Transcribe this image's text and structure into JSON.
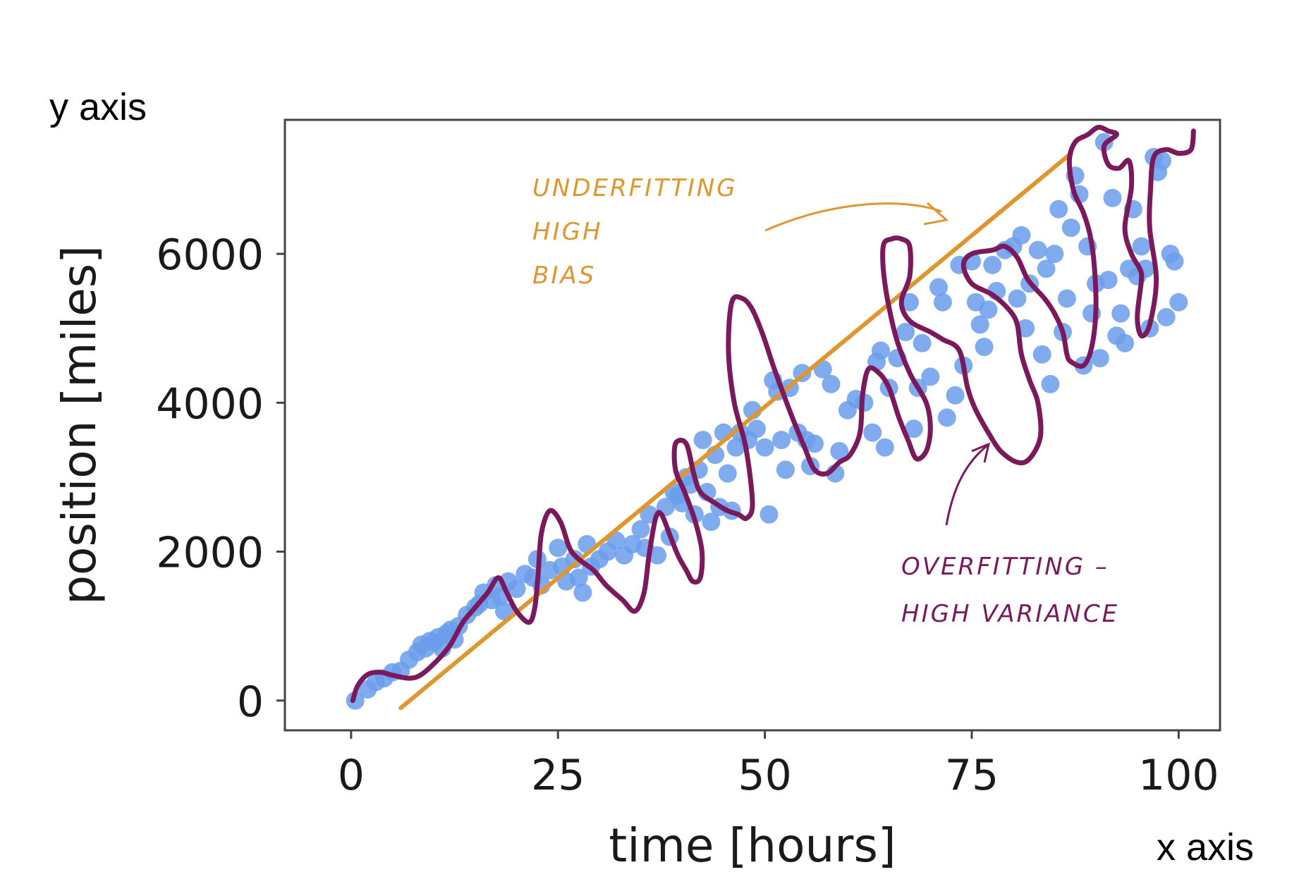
{
  "chart_data": {
    "type": "scatter",
    "title": "",
    "xlabel": "time [hours]",
    "ylabel": "position [miles]",
    "xlim": [
      -8,
      105
    ],
    "ylim": [
      -400,
      7800
    ],
    "x_ticks": [
      0,
      25,
      50,
      75,
      100
    ],
    "y_ticks": [
      0,
      2000,
      4000,
      6000
    ],
    "grid": false,
    "corner_labels": {
      "y": "y axis",
      "x": "x axis"
    },
    "colors": {
      "points": "#6b9cec",
      "underfit": "#e0962e",
      "overfit": "#7a1a5c",
      "frame": "#444444"
    },
    "points": [
      [
        0.5,
        0
      ],
      [
        2,
        150
      ],
      [
        3,
        250
      ],
      [
        4,
        300
      ],
      [
        5,
        380
      ],
      [
        6,
        400
      ],
      [
        7,
        550
      ],
      [
        8,
        650
      ],
      [
        8.5,
        750
      ],
      [
        9,
        700
      ],
      [
        9.5,
        800
      ],
      [
        10,
        780
      ],
      [
        10.5,
        850
      ],
      [
        11,
        700
      ],
      [
        11.5,
        900
      ],
      [
        12,
        950
      ],
      [
        12.5,
        820
      ],
      [
        13,
        1000
      ],
      [
        14,
        1150
      ],
      [
        15,
        1250
      ],
      [
        15.5,
        1300
      ],
      [
        16,
        1450
      ],
      [
        17,
        1350
      ],
      [
        17.5,
        1550
      ],
      [
        18,
        1400
      ],
      [
        18.5,
        1200
      ],
      [
        19,
        1600
      ],
      [
        20,
        1500
      ],
      [
        21,
        1700
      ],
      [
        22,
        1650
      ],
      [
        22.5,
        1900
      ],
      [
        23,
        1550
      ],
      [
        24,
        1750
      ],
      [
        25,
        2050
      ],
      [
        25.5,
        1800
      ],
      [
        26,
        1600
      ],
      [
        27,
        1900
      ],
      [
        27.5,
        1650
      ],
      [
        28,
        1450
      ],
      [
        28.5,
        2100
      ],
      [
        29,
        1800
      ],
      [
        30,
        1900
      ],
      [
        31,
        2000
      ],
      [
        32,
        2150
      ],
      [
        33,
        1950
      ],
      [
        34,
        2100
      ],
      [
        35,
        2300
      ],
      [
        35.5,
        2050
      ],
      [
        36,
        2500
      ],
      [
        37,
        1950
      ],
      [
        38,
        2600
      ],
      [
        38.5,
        2200
      ],
      [
        39,
        2800
      ],
      [
        39.5,
        2750
      ],
      [
        40,
        2650
      ],
      [
        40.5,
        3000
      ],
      [
        41,
        2900
      ],
      [
        41.5,
        2500
      ],
      [
        42,
        3100
      ],
      [
        42.5,
        3500
      ],
      [
        43,
        2800
      ],
      [
        43.5,
        2400
      ],
      [
        44,
        3300
      ],
      [
        44.5,
        2600
      ],
      [
        45,
        3600
      ],
      [
        45.5,
        3050
      ],
      [
        46,
        2550
      ],
      [
        46.5,
        3400
      ],
      [
        47,
        3600
      ],
      [
        48,
        3500
      ],
      [
        48.5,
        3900
      ],
      [
        49,
        3650
      ],
      [
        50,
        3400
      ],
      [
        50.5,
        2500
      ],
      [
        51,
        4300
      ],
      [
        51.5,
        4150
      ],
      [
        52,
        3500
      ],
      [
        52.5,
        3100
      ],
      [
        53,
        4200
      ],
      [
        54,
        3600
      ],
      [
        54.5,
        4400
      ],
      [
        55,
        3500
      ],
      [
        55.5,
        3150
      ],
      [
        56,
        3450
      ],
      [
        57,
        4450
      ],
      [
        58,
        4250
      ],
      [
        58.5,
        3050
      ],
      [
        59,
        3350
      ],
      [
        60,
        3900
      ],
      [
        61,
        4050
      ],
      [
        62,
        4000
      ],
      [
        63,
        3600
      ],
      [
        63.5,
        4550
      ],
      [
        64,
        4700
      ],
      [
        64.5,
        3400
      ],
      [
        65,
        4200
      ],
      [
        66,
        4600
      ],
      [
        67,
        4950
      ],
      [
        67.5,
        5350
      ],
      [
        68,
        3650
      ],
      [
        68.5,
        4200
      ],
      [
        69,
        4800
      ],
      [
        70,
        4350
      ],
      [
        71,
        5550
      ],
      [
        71.5,
        5350
      ],
      [
        72,
        3800
      ],
      [
        73,
        4100
      ],
      [
        73.5,
        5850
      ],
      [
        74,
        4500
      ],
      [
        75,
        5900
      ],
      [
        75.5,
        5350
      ],
      [
        76,
        5050
      ],
      [
        76.5,
        4750
      ],
      [
        77,
        5250
      ],
      [
        77.5,
        5850
      ],
      [
        78,
        5500
      ],
      [
        79,
        6050
      ],
      [
        80,
        6100
      ],
      [
        80.5,
        5400
      ],
      [
        81,
        6250
      ],
      [
        81.5,
        5000
      ],
      [
        82,
        5600
      ],
      [
        83,
        6050
      ],
      [
        83.5,
        4650
      ],
      [
        84,
        5800
      ],
      [
        84.5,
        4250
      ],
      [
        85,
        6000
      ],
      [
        85.5,
        6600
      ],
      [
        86,
        4950
      ],
      [
        86.5,
        5400
      ],
      [
        87,
        6350
      ],
      [
        87.5,
        7050
      ],
      [
        88,
        6800
      ],
      [
        88.5,
        4500
      ],
      [
        89,
        6100
      ],
      [
        89.5,
        5200
      ],
      [
        90,
        5600
      ],
      [
        90.5,
        4600
      ],
      [
        91,
        7500
      ],
      [
        91.5,
        5650
      ],
      [
        92,
        6750
      ],
      [
        92.5,
        4900
      ],
      [
        93,
        5200
      ],
      [
        93.5,
        4800
      ],
      [
        94,
        5800
      ],
      [
        94.5,
        6600
      ],
      [
        95,
        5700
      ],
      [
        95.5,
        6100
      ],
      [
        96,
        5800
      ],
      [
        96.5,
        5000
      ],
      [
        97,
        7300
      ],
      [
        97.5,
        7100
      ],
      [
        98,
        7250
      ],
      [
        98.5,
        5150
      ],
      [
        99,
        6000
      ],
      [
        99.5,
        5900
      ],
      [
        100,
        5350
      ]
    ],
    "underfit_line": {
      "x": [
        6,
        87
      ],
      "y": [
        -100,
        7350
      ]
    },
    "overfit_curve": [
      [
        0.2,
        0
      ],
      [
        0.8,
        200
      ],
      [
        2,
        350
      ],
      [
        3.5,
        380
      ],
      [
        5,
        340
      ],
      [
        7,
        300
      ],
      [
        8.5,
        350
      ],
      [
        10.5,
        550
      ],
      [
        12,
        750
      ],
      [
        13.5,
        1050
      ],
      [
        15,
        1250
      ],
      [
        16.5,
        1450
      ],
      [
        17.8,
        1650
      ],
      [
        18.8,
        1450
      ],
      [
        20,
        1200
      ],
      [
        21.5,
        1050
      ],
      [
        22.2,
        1250
      ],
      [
        22.6,
        1700
      ],
      [
        23,
        2250
      ],
      [
        24,
        2550
      ],
      [
        25.3,
        2400
      ],
      [
        26.4,
        2050
      ],
      [
        27.5,
        1900
      ],
      [
        29.3,
        1750
      ],
      [
        30.8,
        1550
      ],
      [
        32.8,
        1350
      ],
      [
        34.3,
        1200
      ],
      [
        35.4,
        1450
      ],
      [
        36,
        1950
      ],
      [
        36.8,
        2450
      ],
      [
        37.5,
        2500
      ],
      [
        38.6,
        2200
      ],
      [
        39.5,
        1950
      ],
      [
        40.5,
        1750
      ],
      [
        41.3,
        1600
      ],
      [
        42.2,
        1650
      ],
      [
        42.4,
        2000
      ],
      [
        41.6,
        2400
      ],
      [
        40.3,
        2800
      ],
      [
        39.2,
        3100
      ],
      [
        39.2,
        3450
      ],
      [
        40.5,
        3450
      ],
      [
        41.4,
        3050
      ],
      [
        42.2,
        2800
      ],
      [
        44,
        2650
      ],
      [
        45.5,
        2550
      ],
      [
        46.8,
        2500
      ],
      [
        47.8,
        2450
      ],
      [
        48.5,
        2650
      ],
      [
        47.7,
        3400
      ],
      [
        46.3,
        4000
      ],
      [
        45.6,
        4700
      ],
      [
        46,
        5350
      ],
      [
        47.3,
        5400
      ],
      [
        48.5,
        5250
      ],
      [
        49.8,
        4900
      ],
      [
        51,
        4500
      ],
      [
        52.3,
        4100
      ],
      [
        53.5,
        3750
      ],
      [
        54.8,
        3400
      ],
      [
        56,
        3100
      ],
      [
        57.5,
        3050
      ],
      [
        59,
        3200
      ],
      [
        60.3,
        3300
      ],
      [
        61.5,
        3600
      ],
      [
        61.8,
        4100
      ],
      [
        62.5,
        4450
      ],
      [
        63.8,
        4400
      ],
      [
        65,
        4200
      ],
      [
        66.2,
        3800
      ],
      [
        67.3,
        3500
      ],
      [
        68.3,
        3250
      ],
      [
        69.5,
        3350
      ],
      [
        70,
        3650
      ],
      [
        69.5,
        4000
      ],
      [
        67.5,
        4400
      ],
      [
        65.8,
        4900
      ],
      [
        64.5,
        5600
      ],
      [
        64.3,
        6100
      ],
      [
        65.3,
        6200
      ],
      [
        66.5,
        6200
      ],
      [
        67.5,
        6100
      ],
      [
        67.5,
        5700
      ],
      [
        66.5,
        5350
      ],
      [
        67.5,
        5100
      ],
      [
        70,
        4950
      ],
      [
        71.5,
        4850
      ],
      [
        73.5,
        4700
      ],
      [
        74.5,
        4200
      ],
      [
        75.5,
        3900
      ],
      [
        77,
        3600
      ],
      [
        78.5,
        3350
      ],
      [
        80.5,
        3200
      ],
      [
        82,
        3250
      ],
      [
        83.3,
        3550
      ],
      [
        83,
        4000
      ],
      [
        82,
        4300
      ],
      [
        81,
        4650
      ],
      [
        80.5,
        5050
      ],
      [
        79.5,
        5250
      ],
      [
        77.5,
        5450
      ],
      [
        75,
        5600
      ],
      [
        74,
        5850
      ],
      [
        75,
        6000
      ],
      [
        77.5,
        6050
      ],
      [
        79,
        6100
      ],
      [
        80.5,
        5950
      ],
      [
        81.8,
        5650
      ],
      [
        83.8,
        5400
      ],
      [
        85,
        5200
      ],
      [
        86,
        4950
      ],
      [
        86.5,
        4650
      ],
      [
        87,
        4550
      ],
      [
        88.5,
        4500
      ],
      [
        89.5,
        4750
      ],
      [
        90,
        5250
      ],
      [
        89.8,
        5850
      ],
      [
        89.3,
        6250
      ],
      [
        88.5,
        6550
      ],
      [
        87.3,
        6850
      ],
      [
        86.8,
        7250
      ],
      [
        87.5,
        7500
      ],
      [
        89,
        7600
      ],
      [
        90.3,
        7700
      ],
      [
        91.5,
        7650
      ],
      [
        92.5,
        7600
      ],
      [
        91,
        7450
      ],
      [
        91.5,
        7200
      ],
      [
        92.8,
        7150
      ],
      [
        94,
        7250
      ],
      [
        94.3,
        6900
      ],
      [
        93.5,
        6350
      ],
      [
        94.3,
        6000
      ],
      [
        95.3,
        5800
      ],
      [
        95.5,
        5650
      ],
      [
        95,
        5150
      ],
      [
        95.5,
        4900
      ],
      [
        96.5,
        5050
      ],
      [
        97.3,
        5650
      ],
      [
        96.5,
        6350
      ],
      [
        96.6,
        6850
      ],
      [
        97,
        7300
      ],
      [
        98.5,
        7400
      ],
      [
        100,
        7350
      ],
      [
        101.5,
        7400
      ],
      [
        101.8,
        7650
      ]
    ],
    "annotations": {
      "underfit_lines": [
        "UNDERFITTING",
        "HIGH",
        "BIAS"
      ],
      "overfit_lines": [
        "OVERFITTING –",
        "HIGH VARIANCE"
      ]
    }
  }
}
